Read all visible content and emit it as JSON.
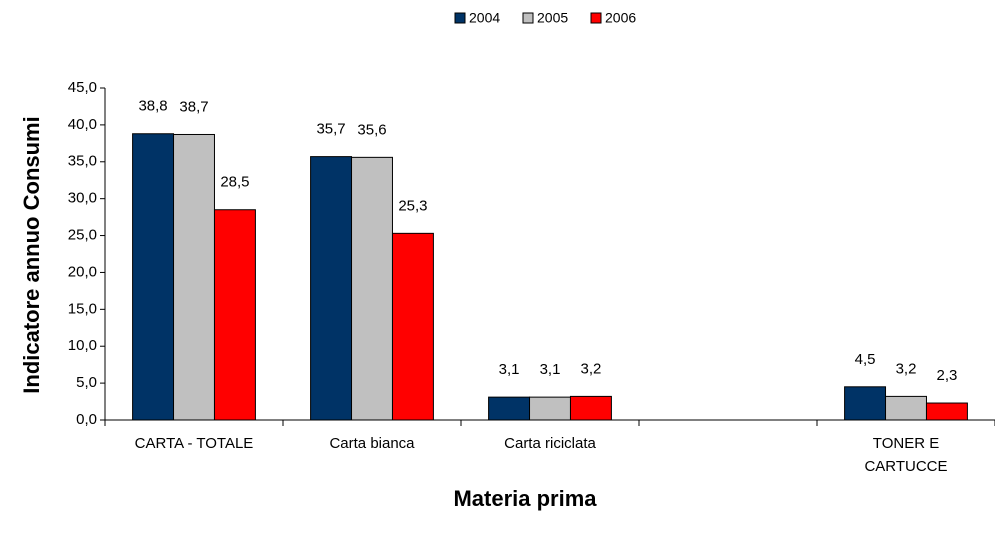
{
  "chart_data": {
    "type": "bar",
    "x_label": "Materia prima",
    "y_label": "Indicatore annuo Consumi",
    "categories": [
      "CARTA - TOTALE",
      "Carta bianca",
      "Carta riciclata",
      null,
      "TONER E\nCARTUCCE"
    ],
    "series": [
      {
        "name": "2004",
        "color": "#003366",
        "values": [
          38.8,
          35.7,
          3.1,
          null,
          4.5
        ],
        "value_labels": [
          "38,8",
          "35,7",
          "3,1",
          null,
          "4,5"
        ]
      },
      {
        "name": "2005",
        "color": "#c0c0c0",
        "values": [
          38.7,
          35.6,
          3.1,
          null,
          3.2
        ],
        "value_labels": [
          "38,7",
          "35,6",
          "3,1",
          null,
          "3,2"
        ]
      },
      {
        "name": "2006",
        "color": "#ff0000",
        "values": [
          28.5,
          25.3,
          3.2,
          null,
          2.3
        ],
        "value_labels": [
          "28,5",
          "25,3",
          "3,2",
          null,
          "2,3"
        ]
      }
    ],
    "ylim": [
      0,
      45
    ],
    "yticks": [
      {
        "value": 0,
        "label": "0,0"
      },
      {
        "value": 5,
        "label": "5,0"
      },
      {
        "value": 10,
        "label": "10,0"
      },
      {
        "value": 15,
        "label": "15,0"
      },
      {
        "value": 20,
        "label": "20,0"
      },
      {
        "value": 25,
        "label": "25,0"
      },
      {
        "value": 30,
        "label": "30,0"
      },
      {
        "value": 35,
        "label": "35,0"
      },
      {
        "value": 40,
        "label": "40,0"
      },
      {
        "value": 45,
        "label": "45,0"
      }
    ],
    "legend": "top"
  }
}
